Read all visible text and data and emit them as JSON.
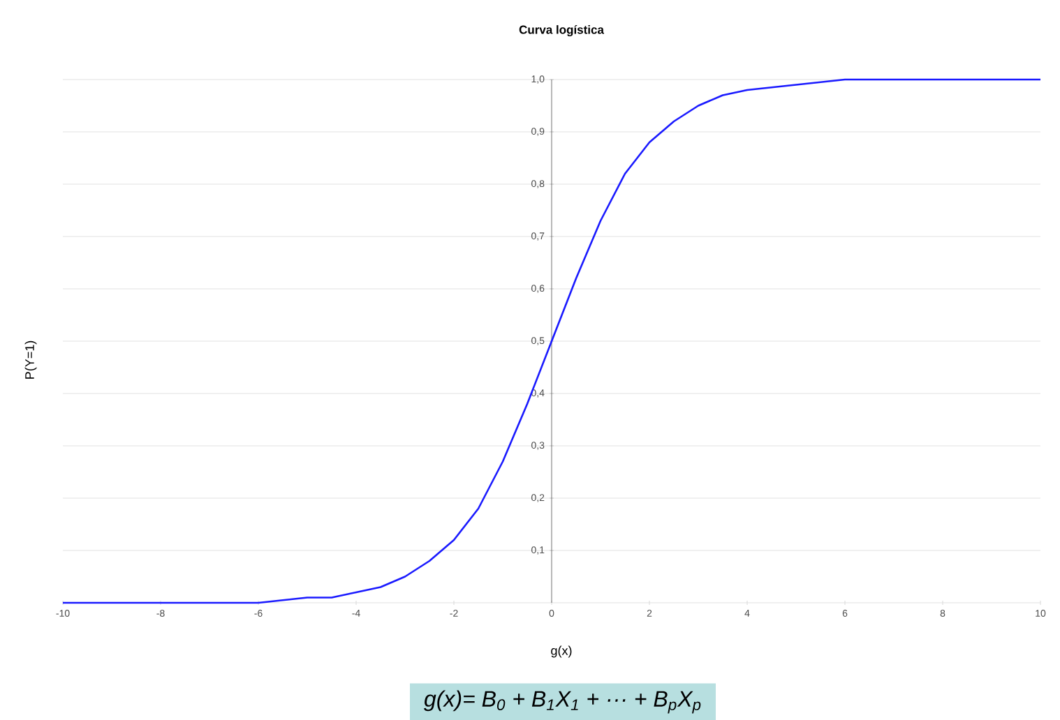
{
  "chart_data": {
    "type": "line",
    "title": "Curva logística",
    "xlabel": "g(x)",
    "ylabel": "P(Y=1)",
    "x": [
      -10,
      -9,
      -8,
      -7,
      -6,
      -5,
      -4.5,
      -4,
      -3.5,
      -3,
      -2.5,
      -2,
      -1.5,
      -1,
      -0.5,
      0,
      0.5,
      1,
      1.5,
      2,
      2.5,
      3,
      3.5,
      4,
      5,
      6,
      7,
      8,
      9,
      10
    ],
    "values": [
      0,
      0,
      0,
      0,
      0,
      0.01,
      0.01,
      0.02,
      0.03,
      0.05,
      0.08,
      0.12,
      0.18,
      0.27,
      0.38,
      0.5,
      0.62,
      0.73,
      0.82,
      0.88,
      0.92,
      0.95,
      0.97,
      0.98,
      0.99,
      1,
      1,
      1,
      1,
      1
    ],
    "color": "#1a1aff",
    "xlim": [
      -10,
      10
    ],
    "ylim": [
      0,
      1
    ],
    "xticks": [
      -10,
      -8,
      -6,
      -4,
      -2,
      0,
      2,
      4,
      6,
      8,
      10
    ],
    "yticks": [
      {
        "value": 0,
        "label": null
      },
      {
        "value": 0.1,
        "label": "0,1"
      },
      {
        "value": 0.2,
        "label": "0,2"
      },
      {
        "value": 0.3,
        "label": "0,3"
      },
      {
        "value": 0.4,
        "label": "0,4"
      },
      {
        "value": 0.5,
        "label": "0,5"
      },
      {
        "value": 0.6,
        "label": "0,6"
      },
      {
        "value": 0.7,
        "label": "0,7"
      },
      {
        "value": 0.8,
        "label": "0,8"
      },
      {
        "value": 0.9,
        "label": "0,9"
      },
      {
        "value": 1,
        "label": "1,0"
      }
    ],
    "grid": "y",
    "annotations": [
      "*g(x)= B$_{0}$ + B$_{1}$X$_{1}$ + ··· + B$_{p}$X$_{p}$*"
    ]
  }
}
